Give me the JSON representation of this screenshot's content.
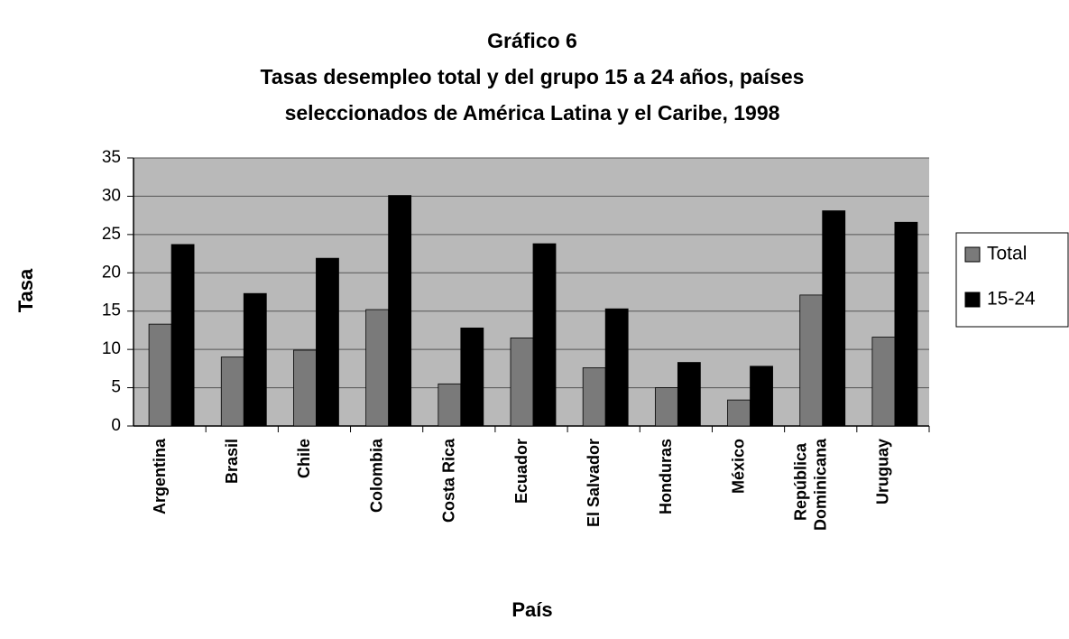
{
  "chart_data": {
    "type": "bar",
    "title": "Gráfico 6",
    "subtitle": [
      "Tasas desempleo total y del grupo 15 a 24 años, países",
      "seleccionados de América Latina y el Caribe, 1998"
    ],
    "x_label": "País",
    "y_label": "Tasa",
    "categories": [
      "Argentina",
      "Brasil",
      "Chile",
      "Colombia",
      "Costa Rica",
      "Ecuador",
      "El Salvador",
      "Honduras",
      "México",
      "República Dominicana",
      "Uruguay"
    ],
    "series": [
      {
        "name": "Total",
        "color": "#7a7a7a",
        "values": [
          13.3,
          9,
          9.9,
          15.2,
          5.5,
          11.5,
          7.6,
          5.0,
          3.4,
          17.1,
          11.6
        ]
      },
      {
        "name": "15-24",
        "color": "#000000",
        "values": [
          23.7,
          17.3,
          21.9,
          30.1,
          12.8,
          23.8,
          15.3,
          8.3,
          7.8,
          28.1,
          26.6
        ]
      }
    ],
    "ylim": [
      0,
      35
    ],
    "yticks": [
      0,
      5,
      10,
      15,
      20,
      25,
      30,
      35
    ],
    "grid": true,
    "legend": "right"
  }
}
